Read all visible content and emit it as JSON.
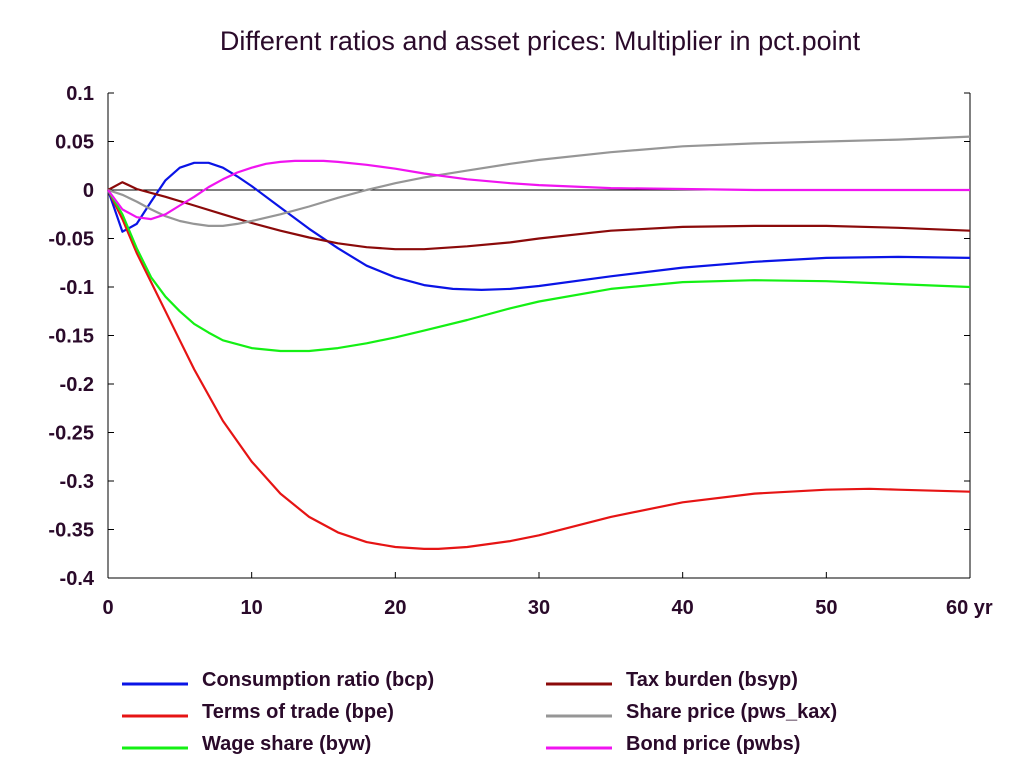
{
  "chart_data": {
    "type": "line",
    "title": "Different ratios and asset prices: Multiplier in pct.point",
    "xlabel": "",
    "ylabel": "",
    "x_unit_label": "yr",
    "xlim": [
      0,
      60
    ],
    "ylim": [
      -0.4,
      0.1
    ],
    "x_ticks": [
      0,
      10,
      20,
      30,
      40,
      50,
      60
    ],
    "x_tick_labels": [
      "0",
      "10",
      "20",
      "30",
      "40",
      "50",
      "60 yr"
    ],
    "y_ticks": [
      0.1,
      0.05,
      0,
      -0.05,
      -0.1,
      -0.15,
      -0.2,
      -0.25,
      -0.3,
      -0.35,
      -0.4
    ],
    "y_tick_labels": [
      "0.1",
      "0.05",
      "0",
      "-0.05",
      "-0.1",
      "-0.15",
      "-0.2",
      "-0.25",
      "-0.3",
      "-0.35",
      "-0.4"
    ],
    "grid": false,
    "zero_line": true,
    "legend_position": "bottom",
    "series": [
      {
        "name": "Consumption ratio (bcp)",
        "color": "#0a14e6",
        "x": [
          0,
          1,
          2,
          3,
          4,
          5,
          6,
          7,
          8,
          9,
          10,
          12,
          14,
          16,
          18,
          20,
          22,
          24,
          26,
          28,
          30,
          35,
          40,
          45,
          50,
          55,
          60
        ],
        "y": [
          0,
          -0.043,
          -0.035,
          -0.012,
          0.01,
          0.023,
          0.028,
          0.028,
          0.023,
          0.014,
          0.004,
          -0.018,
          -0.04,
          -0.06,
          -0.078,
          -0.09,
          -0.098,
          -0.102,
          -0.103,
          -0.102,
          -0.099,
          -0.089,
          -0.08,
          -0.074,
          -0.07,
          -0.069,
          -0.07
        ]
      },
      {
        "name": "Terms of trade (bpe)",
        "color": "#e61414",
        "x": [
          0,
          1,
          2,
          3,
          4,
          5,
          6,
          8,
          10,
          12,
          14,
          16,
          18,
          20,
          22,
          23,
          25,
          28,
          30,
          35,
          40,
          45,
          50,
          53,
          55,
          60
        ],
        "y": [
          0,
          -0.03,
          -0.065,
          -0.095,
          -0.125,
          -0.155,
          -0.185,
          -0.238,
          -0.28,
          -0.313,
          -0.337,
          -0.353,
          -0.363,
          -0.368,
          -0.37,
          -0.37,
          -0.368,
          -0.362,
          -0.356,
          -0.337,
          -0.322,
          -0.313,
          -0.309,
          -0.308,
          -0.309,
          -0.311
        ]
      },
      {
        "name": "Wage share (byw)",
        "color": "#14f014",
        "x": [
          0,
          1,
          2,
          3,
          4,
          5,
          6,
          7,
          8,
          10,
          12,
          14,
          16,
          18,
          20,
          22,
          25,
          28,
          30,
          35,
          40,
          45,
          50,
          55,
          60
        ],
        "y": [
          0,
          -0.025,
          -0.06,
          -0.09,
          -0.11,
          -0.125,
          -0.138,
          -0.147,
          -0.155,
          -0.163,
          -0.166,
          -0.166,
          -0.163,
          -0.158,
          -0.152,
          -0.145,
          -0.134,
          -0.122,
          -0.115,
          -0.102,
          -0.095,
          -0.093,
          -0.094,
          -0.097,
          -0.1
        ]
      },
      {
        "name": "Tax burden (bsyp)",
        "color": "#8b0a0a",
        "x": [
          0,
          1,
          2,
          3,
          4,
          6,
          8,
          10,
          12,
          14,
          16,
          18,
          20,
          22,
          25,
          28,
          30,
          35,
          40,
          45,
          50,
          55,
          60
        ],
        "y": [
          0,
          0.008,
          0.001,
          -0.003,
          -0.007,
          -0.016,
          -0.025,
          -0.034,
          -0.042,
          -0.049,
          -0.055,
          -0.059,
          -0.061,
          -0.061,
          -0.058,
          -0.054,
          -0.05,
          -0.042,
          -0.038,
          -0.037,
          -0.037,
          -0.039,
          -0.042
        ]
      },
      {
        "name": "Share price (pws_kax)",
        "color": "#969696",
        "x": [
          0,
          1,
          2,
          3,
          4,
          5,
          6,
          7,
          8,
          9,
          10,
          12,
          14,
          16,
          18,
          20,
          22,
          25,
          28,
          30,
          35,
          40,
          45,
          50,
          55,
          60
        ],
        "y": [
          0,
          -0.005,
          -0.012,
          -0.02,
          -0.027,
          -0.032,
          -0.035,
          -0.037,
          -0.037,
          -0.035,
          -0.032,
          -0.025,
          -0.017,
          -0.008,
          0.0,
          0.007,
          0.013,
          0.02,
          0.027,
          0.031,
          0.039,
          0.045,
          0.048,
          0.05,
          0.052,
          0.055
        ]
      },
      {
        "name": "Bond price (pwbs)",
        "color": "#f014f0",
        "x": [
          0,
          1,
          2,
          3,
          4,
          5,
          6,
          7,
          8,
          9,
          10,
          11,
          12,
          13,
          14,
          15,
          16,
          18,
          20,
          22,
          25,
          28,
          30,
          35,
          40,
          45,
          50,
          55,
          60
        ],
        "y": [
          0,
          -0.02,
          -0.028,
          -0.03,
          -0.025,
          -0.016,
          -0.007,
          0.003,
          0.011,
          0.018,
          0.023,
          0.027,
          0.029,
          0.03,
          0.03,
          0.03,
          0.029,
          0.026,
          0.022,
          0.017,
          0.011,
          0.007,
          0.005,
          0.002,
          0.001,
          0.0,
          0.0,
          0.0,
          0.0
        ]
      }
    ]
  }
}
